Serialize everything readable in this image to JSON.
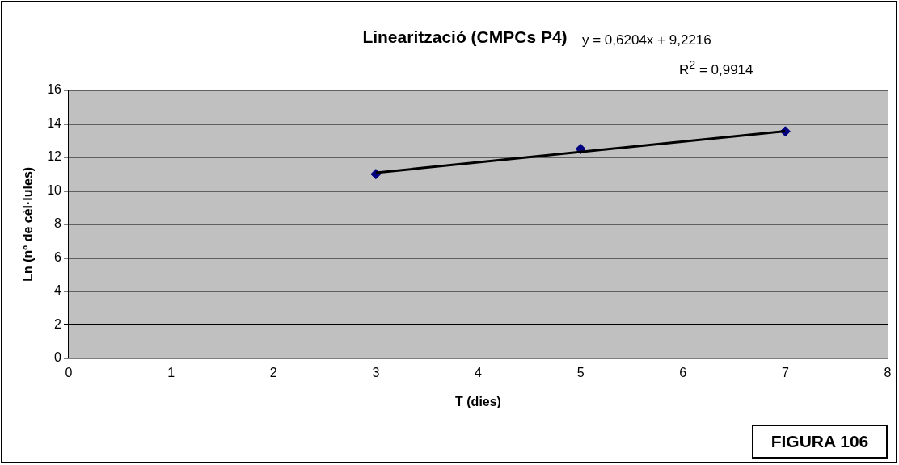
{
  "chart_data": {
    "type": "scatter",
    "title": "Linearització (CMPCs P4)",
    "xlabel": "T (dies)",
    "ylabel": "Ln (nº de cèl·lules)",
    "annotations": [
      "y = 0,6204x + 9,2216",
      "R$^{2}$ = 0,9914",
      "FIGURA 106"
    ],
    "series": [
      {
        "type": "scatter",
        "x": [
          3,
          5,
          7
        ],
        "values": [
          11.0,
          12.5,
          13.55
        ],
        "color": "#000080",
        "marker": "diamond"
      },
      {
        "type": "line",
        "x": [
          3,
          7
        ],
        "values": [
          11.08,
          13.56
        ],
        "color": "#000000",
        "marker": "none"
      }
    ],
    "xlim": [
      0,
      8
    ],
    "xticks": [
      0,
      1,
      2,
      3,
      4,
      5,
      6,
      7,
      8
    ],
    "ylim": [
      0,
      16
    ],
    "yticks": [
      0,
      2,
      4,
      6,
      8,
      10,
      12,
      14,
      16
    ],
    "grid": "y",
    "legend": false,
    "line_style": "solid"
  }
}
